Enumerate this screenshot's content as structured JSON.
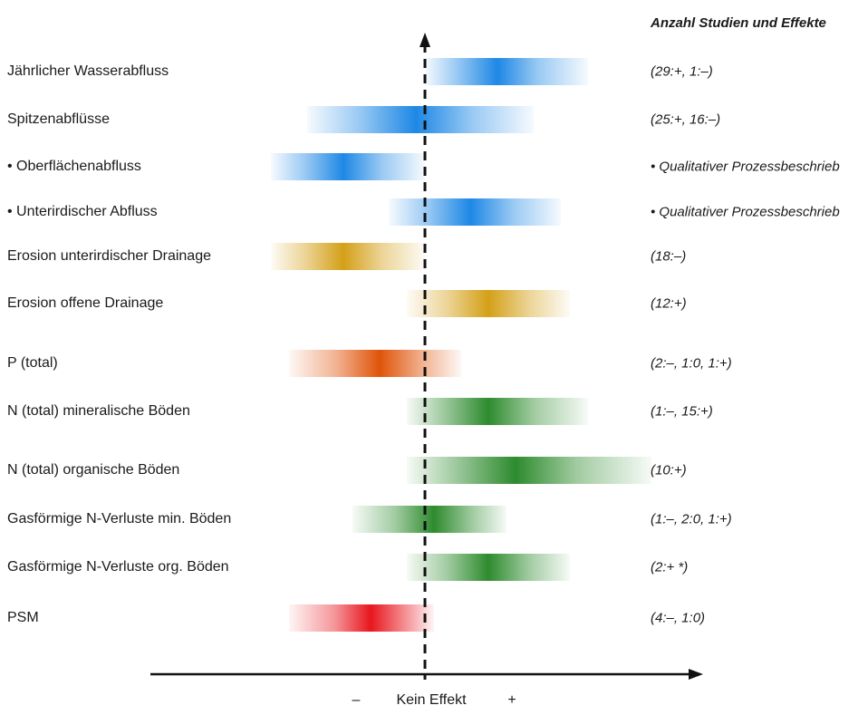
{
  "chart_data": {
    "type": "bar",
    "title": "",
    "counts_header": "Anzahl Studien und Effekte",
    "x_axis": {
      "minus": "–",
      "center": "Kein Effekt",
      "plus": "+"
    },
    "xlim": [
      -1.8,
      3.0
    ],
    "rows": [
      {
        "label": "Jährlicher Wasserabfluss",
        "count": "(29:+, 1:–)",
        "range": [
          0.0,
          1.8
        ],
        "peak": 0.8,
        "color": "#1e88e5"
      },
      {
        "label": "Spitzenabflüsse",
        "count": "(25:+, 16:–)",
        "range": [
          -1.3,
          1.2
        ],
        "peak": -0.1,
        "color": "#1e88e5"
      },
      {
        "label": "• Oberflächenabfluss",
        "count": "• Qualitativer Prozessbeschrieb",
        "range": [
          -1.7,
          0.0
        ],
        "peak": -0.9,
        "color": "#1e88e5"
      },
      {
        "label": "• Unterirdischer Abfluss",
        "count": "• Qualitativer Prozessbeschrieb",
        "range": [
          -0.4,
          1.5
        ],
        "peak": 0.5,
        "color": "#1e88e5"
      },
      {
        "label": "Erosion unterirdischer Drainage",
        "count": "(18:–)",
        "range": [
          -1.7,
          0.0
        ],
        "peak": -0.9,
        "color": "#d4a017"
      },
      {
        "label": "Erosion offene Drainage",
        "count": "(12:+)",
        "range": [
          -0.2,
          1.6
        ],
        "peak": 0.7,
        "color": "#d4a017"
      },
      {
        "label": "P (total)",
        "count": "(2:–, 1:0, 1:+)",
        "range": [
          -1.5,
          0.4
        ],
        "peak": -0.5,
        "color": "#e0540a"
      },
      {
        "label": "N (total) mineralische Böden",
        "count": "(1:–, 15:+)",
        "range": [
          -0.2,
          1.8
        ],
        "peak": 0.7,
        "color": "#2e8b2e"
      },
      {
        "label": "N (total) organische Böden",
        "count": "(10:+)",
        "range": [
          -0.2,
          2.5
        ],
        "peak": 1.0,
        "color": "#2e8b2e"
      },
      {
        "label": "Gasförmige N-Verluste min. Böden",
        "count": "(1:–, 2:0, 1:+)",
        "range": [
          -0.8,
          0.9
        ],
        "peak": 0.1,
        "color": "#2e8b2e"
      },
      {
        "label": "Gasförmige N-Verluste org. Böden",
        "count": "(2:+ *)",
        "range": [
          -0.2,
          1.6
        ],
        "peak": 0.7,
        "color": "#2e8b2e"
      },
      {
        "label": "PSM",
        "count": "(4:–, 1:0)",
        "range": [
          -1.5,
          0.1
        ],
        "peak": -0.6,
        "color": "#e8161e"
      }
    ]
  }
}
